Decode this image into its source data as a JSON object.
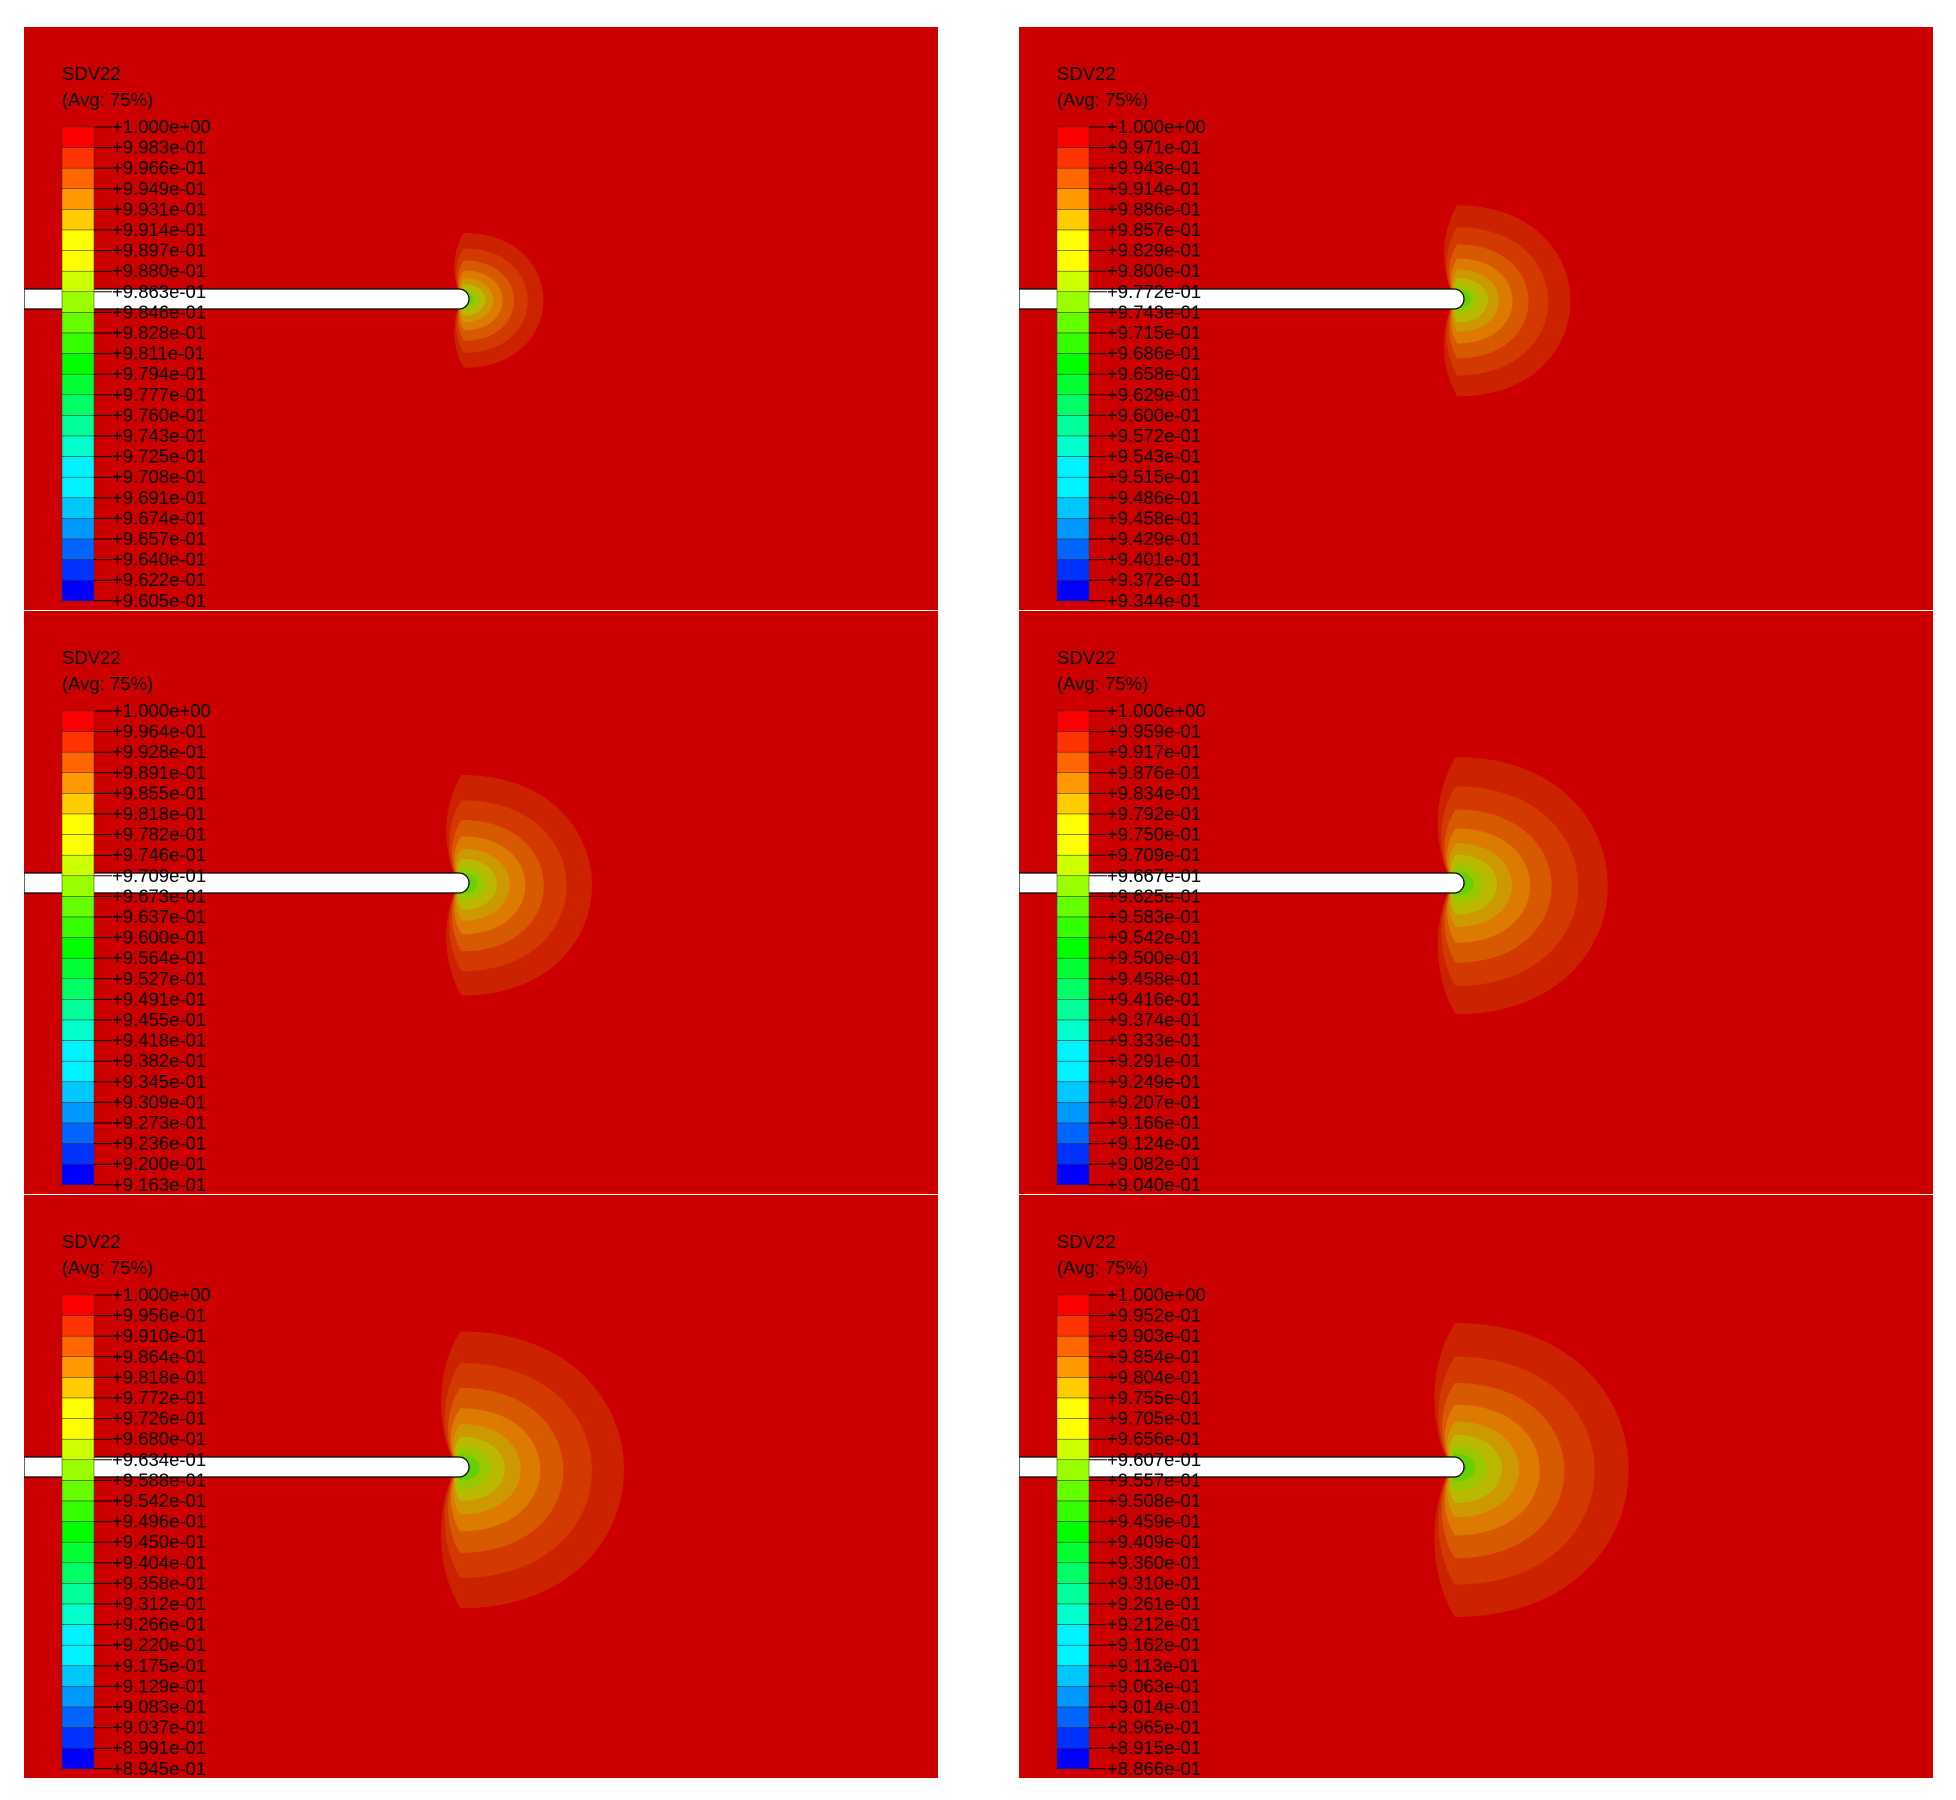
{
  "palette": [
    "#0000ff",
    "#0033ff",
    "#0066ff",
    "#0099ff",
    "#00c8ff",
    "#00f2ff",
    "#00ffcc",
    "#00ff99",
    "#00ff66",
    "#00ff33",
    "#00ff00",
    "#33ff00",
    "#66ff00",
    "#99ff00",
    "#ccff00",
    "#ffff00",
    "#ffcc00",
    "#ff9900",
    "#ff6600",
    "#ff3300",
    "#ff0000"
  ],
  "background_color": "#cc0000",
  "panels": [
    {
      "variable": "SDV22",
      "averaging": "(Avg: 75%)",
      "tick_labels": [
        "+1.000e+00",
        "+9.983e-01",
        "+9.966e-01",
        "+9.949e-01",
        "+9.931e-01",
        "+9.914e-01",
        "+9.897e-01",
        "+9.880e-01",
        "+9.863e-01",
        "+9.846e-01",
        "+9.828e-01",
        "+9.811e-01",
        "+9.794e-01",
        "+9.777e-01",
        "+9.760e-01",
        "+9.743e-01",
        "+9.725e-01",
        "+9.708e-01",
        "+9.691e-01",
        "+9.674e-01",
        "+9.657e-01",
        "+9.640e-01",
        "+9.622e-01",
        "+9.605e-01"
      ],
      "contour_spread": 0.55
    },
    {
      "variable": "SDV22",
      "averaging": "(Avg: 75%)",
      "tick_labels": [
        "+1.000e+00",
        "+9.971e-01",
        "+9.943e-01",
        "+9.914e-01",
        "+9.886e-01",
        "+9.857e-01",
        "+9.829e-01",
        "+9.800e-01",
        "+9.772e-01",
        "+9.743e-01",
        "+9.715e-01",
        "+9.686e-01",
        "+9.658e-01",
        "+9.629e-01",
        "+9.600e-01",
        "+9.572e-01",
        "+9.543e-01",
        "+9.515e-01",
        "+9.486e-01",
        "+9.458e-01",
        "+9.429e-01",
        "+9.401e-01",
        "+9.372e-01",
        "+9.344e-01"
      ],
      "contour_spread": 0.78
    },
    {
      "variable": "SDV22",
      "averaging": "(Avg: 75%)",
      "tick_labels": [
        "+1.000e+00",
        "+9.964e-01",
        "+9.928e-01",
        "+9.891e-01",
        "+9.855e-01",
        "+9.818e-01",
        "+9.782e-01",
        "+9.746e-01",
        "+9.709e-01",
        "+9.673e-01",
        "+9.637e-01",
        "+9.600e-01",
        "+9.564e-01",
        "+9.527e-01",
        "+9.491e-01",
        "+9.455e-01",
        "+9.418e-01",
        "+9.382e-01",
        "+9.345e-01",
        "+9.309e-01",
        "+9.273e-01",
        "+9.236e-01",
        "+9.200e-01",
        "+9.163e-01"
      ],
      "contour_spread": 0.9
    },
    {
      "variable": "SDV22",
      "averaging": "(Avg: 75%)",
      "tick_labels": [
        "+1.000e+00",
        "+9.959e-01",
        "+9.917e-01",
        "+9.876e-01",
        "+9.834e-01",
        "+9.792e-01",
        "+9.750e-01",
        "+9.709e-01",
        "+9.667e-01",
        "+9.625e-01",
        "+9.583e-01",
        "+9.542e-01",
        "+9.500e-01",
        "+9.458e-01",
        "+9.416e-01",
        "+9.374e-01",
        "+9.333e-01",
        "+9.291e-01",
        "+9.249e-01",
        "+9.207e-01",
        "+9.166e-01",
        "+9.124e-01",
        "+9.082e-01",
        "+9.040e-01"
      ],
      "contour_spread": 1.05
    },
    {
      "variable": "SDV22",
      "averaging": "(Avg: 75%)",
      "tick_labels": [
        "+1.000e+00",
        "+9.956e-01",
        "+9.910e-01",
        "+9.864e-01",
        "+9.818e-01",
        "+9.772e-01",
        "+9.726e-01",
        "+9.680e-01",
        "+9.634e-01",
        "+9.588e-01",
        "+9.542e-01",
        "+9.496e-01",
        "+9.450e-01",
        "+9.404e-01",
        "+9.358e-01",
        "+9.312e-01",
        "+9.266e-01",
        "+9.220e-01",
        "+9.175e-01",
        "+9.129e-01",
        "+9.083e-01",
        "+9.037e-01",
        "+8.991e-01",
        "+8.945e-01"
      ],
      "contour_spread": 1.13
    },
    {
      "variable": "SDV22",
      "averaging": "(Avg: 75%)",
      "tick_labels": [
        "+1.000e+00",
        "+9.952e-01",
        "+9.903e-01",
        "+9.854e-01",
        "+9.804e-01",
        "+9.755e-01",
        "+9.705e-01",
        "+9.656e-01",
        "+9.607e-01",
        "+9.557e-01",
        "+9.508e-01",
        "+9.459e-01",
        "+9.409e-01",
        "+9.360e-01",
        "+9.310e-01",
        "+9.261e-01",
        "+9.212e-01",
        "+9.162e-01",
        "+9.113e-01",
        "+9.063e-01",
        "+9.014e-01",
        "+8.965e-01",
        "+8.915e-01",
        "+8.866e-01"
      ],
      "contour_spread": 1.2
    }
  ]
}
